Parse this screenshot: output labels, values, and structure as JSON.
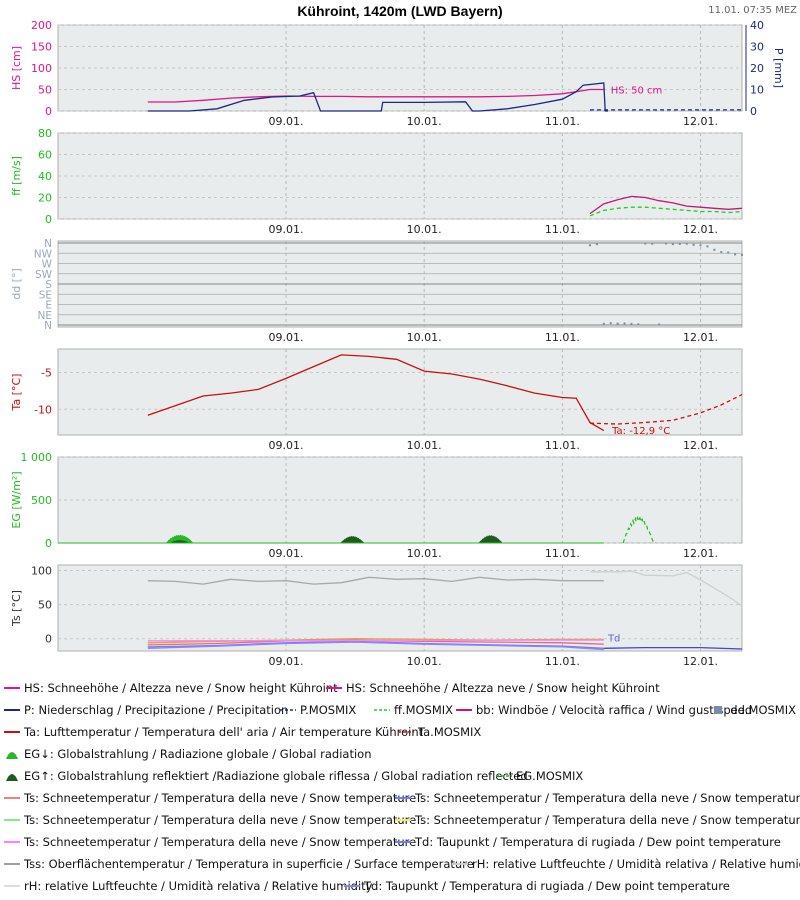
{
  "header": {
    "title": "Kühroint, 1420m (LWD Bayern)",
    "timestamp": "11.01. 07:35 MEZ"
  },
  "x_days": [
    "09.01.",
    "10.01.",
    "11.01.",
    "12.01."
  ],
  "chart_data": [
    {
      "type": "line",
      "id": "snow",
      "ylabel": "HS [cm]",
      "ylim": [
        0,
        200
      ],
      "yticks": [
        0,
        50,
        100,
        150,
        200
      ],
      "y2label": "P [mm]",
      "y2lim": [
        0,
        40
      ],
      "y2ticks": [
        0,
        10,
        20,
        30,
        40
      ],
      "annotation": "HS: 50 cm",
      "series": [
        {
          "name": "HS",
          "axis": "y",
          "color": "#e0148c",
          "style": "solid",
          "t": [
            0,
            0.2,
            0.4,
            0.6,
            0.8,
            1.0,
            1.2,
            1.4,
            1.6,
            1.8,
            2.0,
            2.2,
            2.4,
            2.6,
            2.8,
            3.0,
            3.2,
            3.3
          ],
          "v": [
            21,
            21,
            25,
            30,
            33,
            35,
            34,
            34,
            33,
            33,
            33,
            33,
            33,
            34,
            36,
            40,
            50,
            50
          ]
        },
        {
          "name": "P",
          "axis": "y2",
          "color": "#1a2a80",
          "style": "solid",
          "t": [
            0,
            0.3,
            0.5,
            0.7,
            0.9,
            1.1,
            1.2,
            1.25,
            1.3,
            1.5,
            1.69,
            1.7,
            1.75,
            2.0,
            2.3,
            2.35,
            2.4,
            2.6,
            2.8,
            3.0,
            3.1,
            3.15,
            3.3,
            3.31,
            3.33
          ],
          "v": [
            0,
            0,
            1,
            5,
            6.5,
            7,
            8.5,
            0,
            0,
            0,
            0,
            4,
            4,
            4,
            4.3,
            0,
            0,
            1,
            3,
            5.5,
            9,
            12,
            13,
            0,
            0
          ]
        },
        {
          "name": "P.MOSMIX",
          "axis": "y2",
          "color": "#1a2a80",
          "style": "dashed",
          "t": [
            3.2,
            4.3
          ],
          "v": [
            0.5,
            0.5
          ]
        }
      ]
    },
    {
      "type": "line",
      "id": "wind",
      "ylabel": "ff [m/s]",
      "ylim": [
        0,
        80
      ],
      "yticks": [
        0,
        20,
        40,
        60,
        80
      ],
      "series": [
        {
          "name": "bb.MOSMIX",
          "color": "#c0187a",
          "style": "solid",
          "t": [
            3.2,
            3.3,
            3.4,
            3.5,
            3.6,
            3.7,
            3.8,
            3.9,
            4.0,
            4.1,
            4.2,
            4.3
          ],
          "v": [
            5,
            14,
            18,
            21,
            20,
            17,
            15,
            12,
            11,
            10,
            9,
            10
          ]
        },
        {
          "name": "ff.MOSMIX",
          "color": "#22cc22",
          "style": "dashed",
          "t": [
            3.2,
            3.3,
            3.4,
            3.5,
            3.6,
            3.7,
            3.8,
            3.9,
            4.0,
            4.1,
            4.2,
            4.3
          ],
          "v": [
            3,
            8,
            10,
            11,
            11,
            10,
            9,
            8,
            7,
            7,
            6,
            7
          ]
        }
      ]
    },
    {
      "type": "scatter",
      "id": "direction",
      "ylabel": "dd [°]",
      "ylim": [
        0,
        360
      ],
      "yticks": [
        "N",
        "NW",
        "W",
        "SW",
        "S",
        "SE",
        "E",
        "NE",
        "N"
      ],
      "series": [
        {
          "name": "dd.MOSMIX",
          "color": "#7a8aa8",
          "t": [
            3.2,
            3.25,
            3.3,
            3.35,
            3.4,
            3.45,
            3.5,
            3.55,
            3.6,
            3.65,
            3.7,
            3.75,
            3.8,
            3.85,
            3.9,
            3.95,
            4.0,
            4.05,
            4.1,
            4.15,
            4.2,
            4.25,
            4.3
          ],
          "v": [
            350,
            355,
            5,
            8,
            6,
            7,
            5,
            3,
            358,
            357,
            2,
            358,
            355,
            356,
            357,
            352,
            350,
            345,
            330,
            320,
            318,
            310,
            308
          ]
        }
      ]
    },
    {
      "type": "line",
      "id": "temp",
      "ylabel": "Ta [°C]",
      "ylim": [
        -13.5,
        -1.8
      ],
      "yticks": [
        -5,
        -10
      ],
      "annotation": "Ta: -12,9 °C",
      "series": [
        {
          "name": "Ta",
          "color": "#c81010",
          "style": "solid",
          "t": [
            0,
            0.2,
            0.4,
            0.6,
            0.8,
            1.0,
            1.2,
            1.4,
            1.6,
            1.8,
            2.0,
            2.2,
            2.4,
            2.6,
            2.8,
            3.0,
            3.1,
            3.2,
            3.3
          ],
          "v": [
            -10.8,
            -9.5,
            -8.2,
            -7.8,
            -7.3,
            -5.8,
            -4.2,
            -2.6,
            -2.8,
            -3.2,
            -4.8,
            -5.2,
            -5.9,
            -6.8,
            -7.8,
            -8.4,
            -8.5,
            -11.8,
            -12.9
          ]
        },
        {
          "name": "Ta.MOSMIX",
          "color": "#c81010",
          "style": "dashed",
          "t": [
            3.2,
            3.4,
            3.6,
            3.8,
            4.0,
            4.15,
            4.3
          ],
          "v": [
            -11.9,
            -12.0,
            -11.8,
            -11.5,
            -10.5,
            -9.4,
            -8.0
          ]
        }
      ]
    },
    {
      "type": "area",
      "id": "radiation",
      "ylabel": "EG [W/m²]",
      "ylim": [
        0,
        1000
      ],
      "yticks": [
        0,
        500,
        1000
      ],
      "ytick_labels": [
        "0",
        "500",
        "1 000"
      ],
      "series": [
        {
          "name": "EG↓",
          "color": "#22bb22",
          "type": "area",
          "peaks": [
            {
              "t": 0.23,
              "v": 100,
              "w": 0.2
            },
            {
              "t": 1.48,
              "v": 70,
              "w": 0.18
            },
            {
              "t": 2.48,
              "v": 80,
              "w": 0.18
            }
          ]
        },
        {
          "name": "EG↑",
          "color": "#1f5a1f",
          "type": "area",
          "peaks": [
            {
              "t": 0.23,
              "v": 35,
              "w": 0.14
            },
            {
              "t": 1.48,
              "v": 85,
              "w": 0.17
            },
            {
              "t": 2.48,
              "v": 95,
              "w": 0.17
            }
          ]
        },
        {
          "name": "EG.MOSMIX",
          "color": "#22bb22",
          "style": "dashed",
          "peaks": [
            {
              "t": 3.55,
              "v": 300,
              "w": 0.22
            }
          ]
        }
      ]
    },
    {
      "type": "line",
      "id": "surface",
      "ylabel": "Ts [°C]",
      "ylim": [
        -18,
        108
      ],
      "yticks": [
        0,
        50,
        100
      ],
      "annotation": "Td",
      "series": [
        {
          "name": "rH",
          "color": "#a8a8a8",
          "style": "solid",
          "t": [
            0,
            0.2,
            0.4,
            0.6,
            0.8,
            1.0,
            1.2,
            1.4,
            1.6,
            1.8,
            2.0,
            2.2,
            2.4,
            2.6,
            2.8,
            3.0,
            3.2,
            3.3
          ],
          "v": [
            85,
            84,
            80,
            87,
            84,
            85,
            80,
            82,
            90,
            87,
            88,
            84,
            90,
            86,
            87,
            85,
            85,
            85
          ]
        },
        {
          "name": "rH.MOSMIX",
          "color": "#cfcfcf",
          "style": "solid",
          "t": [
            3.2,
            3.4,
            3.5,
            3.6,
            3.8,
            3.9,
            4.0,
            4.1,
            4.2,
            4.3
          ],
          "v": [
            98,
            98,
            99,
            93,
            92,
            97,
            86,
            74,
            62,
            48
          ]
        },
        {
          "name": "Td",
          "color": "#7777ff",
          "style": "solid",
          "t": [
            0,
            0.5,
            1.0,
            1.5,
            2.0,
            2.5,
            3.0,
            3.3
          ],
          "v": [
            -12,
            -10,
            -6,
            -4,
            -7,
            -9,
            -11,
            -14
          ]
        },
        {
          "name": "Td.MOSMIX",
          "color": "#4444cc",
          "style": "solid",
          "t": [
            3.3,
            3.6,
            4.0,
            4.3
          ],
          "v": [
            -14,
            -13,
            -13,
            -15
          ]
        },
        {
          "name": "Ts",
          "color": "#e0a040",
          "style": "solid",
          "t": [
            0,
            0.5,
            1.0,
            1.5,
            2.0,
            2.5,
            3.0,
            3.3
          ],
          "v": [
            -6,
            -4,
            -2,
            0,
            -1,
            -2,
            -1,
            -1
          ]
        },
        {
          "name": "Ts2",
          "color": "#e07070",
          "style": "solid",
          "t": [
            0,
            0.5,
            1.0,
            1.5,
            2.0,
            2.5,
            3.0,
            3.3
          ],
          "v": [
            -9,
            -7,
            -3,
            -2,
            -4,
            -5,
            -6,
            -8
          ]
        },
        {
          "name": "Ts3",
          "color": "#ff80ff",
          "style": "solid",
          "t": [
            0,
            3.3
          ],
          "v": [
            -3,
            -2
          ]
        },
        {
          "name": "Tss",
          "color": "#8888ee",
          "style": "solid",
          "t": [
            0,
            0.5,
            1.0,
            1.5,
            2.0,
            2.5,
            3.0,
            3.3
          ],
          "v": [
            -14,
            -11,
            -7,
            -5,
            -8,
            -10,
            -12,
            -16
          ]
        }
      ]
    }
  ],
  "legend": {
    "rows": [
      [
        {
          "label": "HS: Schneehöhe / Altezza neve / Snow height  Kühroint",
          "color": "#e0148c",
          "sym": "line"
        },
        {
          "label": "HS: Schneehöhe / Altezza neve / Snow height  Kühroint",
          "color": "#e0148c",
          "sym": "line"
        }
      ],
      [
        {
          "label": "P: Niederschlag / Precipitazione / Precipitation",
          "color": "#1a2a80",
          "sym": "line"
        },
        {
          "label": "P.MOSMIX",
          "color": "#1a2a80",
          "sym": "dash"
        },
        {
          "label": "ff.MOSMIX",
          "color": "#22cc22",
          "sym": "dash"
        },
        {
          "label": "bb: Windböe / Velocità raffica / Wind gust speed",
          "color": "#c0187a",
          "sym": "line"
        },
        {
          "label": "dd.MOSMIX",
          "color": "#7a8aa8",
          "sym": "square"
        }
      ],
      [
        {
          "label": "Ta: Lufttemperatur / Temperatura dell' aria / Air temperature  Kühroint",
          "color": "#c81010",
          "sym": "line"
        },
        {
          "label": "Ta.MOSMIX",
          "color": "#c81010",
          "sym": "dash"
        }
      ],
      [
        {
          "label": "EG↓: Globalstrahlung / Radiazione globale / Global radiation",
          "color": "#22bb22",
          "sym": "mound"
        }
      ],
      [
        {
          "label": "EG↑: Globalstrahlung reflektiert /Radiazione globale riflessa / Global radiation reflected",
          "color": "#1f5a1f",
          "sym": "mound"
        },
        {
          "label": "EG.MOSMIX",
          "color": "#22bb22",
          "sym": "dash"
        }
      ],
      [
        {
          "label": "Ts: Schneetemperatur / Temperatura della neve / Snow temperature",
          "color": "#f08080",
          "sym": "line"
        },
        {
          "label": "Ts: Schneetemperatur / Temperatura della neve / Snow temperature",
          "color": "#7777ff",
          "sym": "line"
        }
      ],
      [
        {
          "label": "Ts: Schneetemperatur / Temperatura della neve / Snow temperature",
          "color": "#80ee80",
          "sym": "line"
        },
        {
          "label": "Ts: Schneetemperatur / Temperatura della neve / Snow temperature",
          "color": "#eeee60",
          "sym": "line"
        }
      ],
      [
        {
          "label": "Ts: Schneetemperatur / Temperatura della neve / Snow temperature",
          "color": "#ff80ff",
          "sym": "line"
        },
        {
          "label": "Td: Taupunkt / Temperatura di rugiada / Dew point temperature",
          "color": "#7777ff",
          "sym": "line"
        }
      ],
      [
        {
          "label": "Tss: Oberflächentemperatur / Temperatura in superficie / Surface temperature",
          "color": "#a0a0a0",
          "sym": "line"
        },
        {
          "label": "rH: relative Luftfeuchte / Umidità relativa / Relative humidity",
          "color": "#cccccc",
          "sym": "line"
        }
      ],
      [
        {
          "label": "rH: relative Luftfeuchte / Umidità relativa / Relative humidity",
          "color": "#dddddd",
          "sym": "line"
        },
        {
          "label": "Td: Taupunkt / Temperatura di rugiada / Dew point temperature",
          "color": "#8888dd",
          "sym": "line"
        }
      ]
    ]
  }
}
